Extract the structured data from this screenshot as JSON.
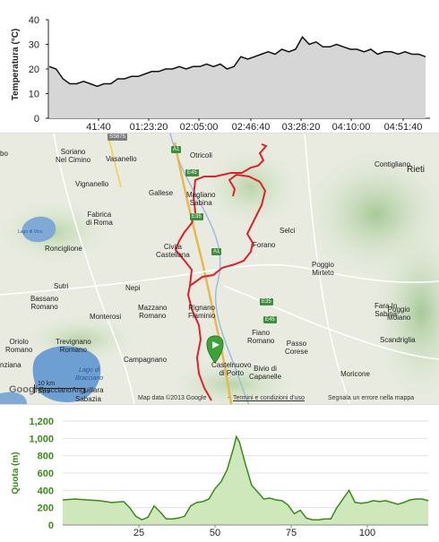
{
  "temperature_chart": {
    "ylabel": "Temperatura (°C)",
    "y_ticks": [
      "0",
      "10",
      "20",
      "30",
      "40"
    ],
    "x_ticks": [
      "41:40",
      "01:23:20",
      "02:05:00",
      "02:46:40",
      "03:28:20",
      "04:10:00",
      "04:51:40"
    ],
    "fill_color": "#d6d6d6",
    "line_color": "#111111"
  },
  "map": {
    "labels": [
      {
        "text": "Soriano\nNel Cimino"
      },
      {
        "text": "Vasanello"
      },
      {
        "text": "Otricoli"
      },
      {
        "text": "Contigliano"
      },
      {
        "text": "Rieti"
      },
      {
        "text": "Gallese"
      },
      {
        "text": "Vignanello"
      },
      {
        "text": "Magliano\nSabina"
      },
      {
        "text": "Fabrica\ndi Roma"
      },
      {
        "text": "Selci"
      },
      {
        "text": "Ronciglione"
      },
      {
        "text": "Civita\nCastellana"
      },
      {
        "text": "Forano"
      },
      {
        "text": "Poggio\nMirteto"
      },
      {
        "text": "Sutri"
      },
      {
        "text": "Nepi"
      },
      {
        "text": "Bassano\nRomano"
      },
      {
        "text": "Mazzano\nRomano"
      },
      {
        "text": "Rignano\nFlaminio"
      },
      {
        "text": "Fara In\nSabina"
      },
      {
        "text": "Poggio\nMoiano"
      },
      {
        "text": "Monterosi"
      },
      {
        "text": "Oriolo\nRomano"
      },
      {
        "text": "Trevignano\nRomano"
      },
      {
        "text": "Campagnano"
      },
      {
        "text": "Fiano\nRomano"
      },
      {
        "text": "Passo\nCorese"
      },
      {
        "text": "Scandriglia"
      },
      {
        "text": "Castelnuovo\ndi Porto"
      },
      {
        "text": "Bivio di\nCapanelle"
      },
      {
        "text": "Moricone"
      },
      {
        "text": "nziana"
      },
      {
        "text": "Lago di\nBracciano"
      },
      {
        "text": "Bracciano"
      },
      {
        "text": "Anguillara"
      },
      {
        "text": "Sabazia"
      },
      {
        "text": "bo"
      },
      {
        "text": "Lago di Vico"
      }
    ],
    "road_badges": [
      "SS675",
      "A1",
      "E45",
      "E35",
      "A1",
      "E35",
      "E45"
    ],
    "scale_km": "10 km",
    "scale_mi": "5 mi",
    "logo": "Google",
    "attribution": "Map data ©2013 Google",
    "terms_link": "Termini e condizioni d'uso",
    "report_link": "Segnala un errore nella mappa",
    "route_color": "#e0202a",
    "marker_color": "#3aa534"
  },
  "chart_data": {
    "type": "area",
    "xlabel": "",
    "ylabel": "Quota (m)",
    "y_ticks": [
      "0",
      "200",
      "400",
      "600",
      "800",
      "1,000",
      "1,200"
    ],
    "x_ticks": [
      "25",
      "50",
      "75",
      "100"
    ],
    "ylim": [
      0,
      1200
    ],
    "xlim": [
      0,
      120
    ],
    "grid": "horizontal",
    "x": [
      0,
      4,
      8,
      12,
      16,
      20,
      22,
      24,
      26,
      28,
      30,
      32,
      34,
      36,
      38,
      40,
      42,
      44,
      46,
      48,
      50,
      52,
      54,
      56,
      57,
      58,
      60,
      62,
      64,
      66,
      68,
      70,
      72,
      74,
      76,
      78,
      80,
      82,
      84,
      86,
      88,
      90,
      92,
      94,
      96,
      98,
      100,
      102,
      104,
      106,
      108,
      110,
      112,
      114,
      116,
      118,
      120
    ],
    "values": [
      290,
      300,
      290,
      280,
      260,
      270,
      200,
      100,
      60,
      90,
      220,
      150,
      70,
      70,
      80,
      100,
      220,
      260,
      270,
      300,
      420,
      500,
      640,
      880,
      1020,
      960,
      700,
      460,
      380,
      300,
      310,
      290,
      280,
      230,
      130,
      170,
      80,
      60,
      60,
      70,
      70,
      200,
      300,
      400,
      260,
      250,
      260,
      280,
      270,
      280,
      260,
      240,
      260,
      290,
      300,
      300,
      280
    ],
    "colors": {
      "line": "#3a8a18",
      "fill": "#cfe8bb"
    }
  }
}
